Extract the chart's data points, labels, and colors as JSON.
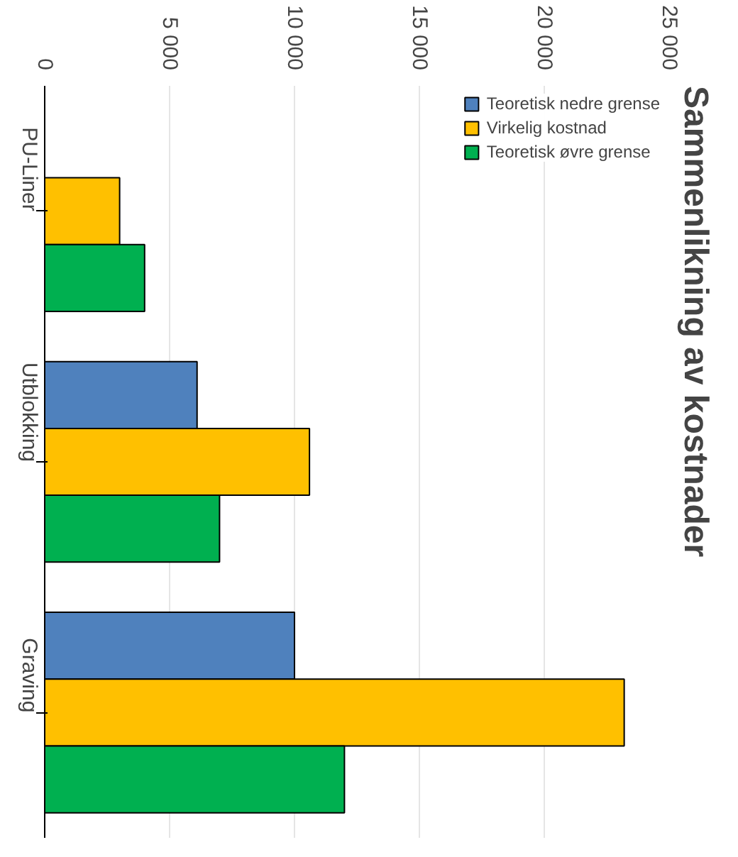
{
  "chart_data": {
    "type": "bar",
    "orientation": "horizontal",
    "title": "Sammenlikning av kostnader",
    "categories": [
      "PU-Liner",
      "Utblokking",
      "Graving"
    ],
    "series": [
      {
        "name": "Teoretisk nedre grense",
        "color": "#4f81bd",
        "values": [
          null,
          6100,
          10000
        ]
      },
      {
        "name": "Virkelig kostnad",
        "color": "#ffc000",
        "values": [
          3000,
          10600,
          23200
        ]
      },
      {
        "name": "Teoretisk øvre grense",
        "color": "#00b050",
        "values": [
          4000,
          7000,
          12000
        ]
      }
    ],
    "xlim": [
      0,
      25000
    ],
    "xticks": [
      {
        "value": 0,
        "label": "0"
      },
      {
        "value": 5000,
        "label": "5 000"
      },
      {
        "value": 10000,
        "label": "10 000"
      },
      {
        "value": 15000,
        "label": "15 000"
      },
      {
        "value": 20000,
        "label": "20 000"
      },
      {
        "value": 25000,
        "label": "25 000"
      }
    ],
    "grid": "x",
    "legend": "top right"
  }
}
